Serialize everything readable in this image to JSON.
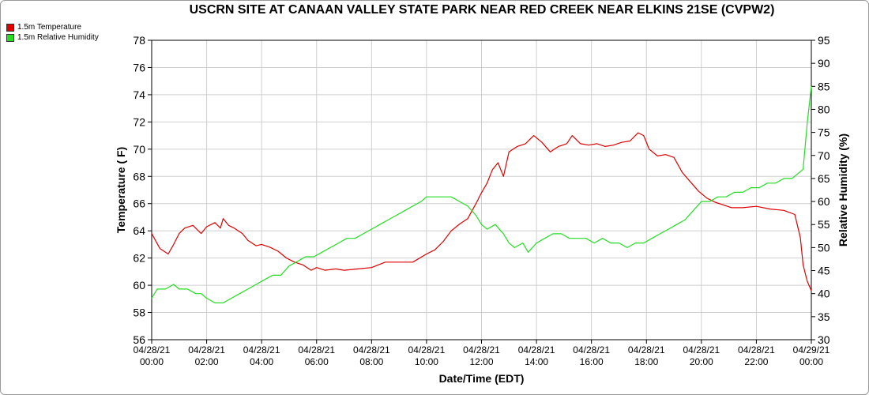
{
  "chart_data": {
    "type": "line",
    "title": "USCRN SITE AT CANAAN VALLEY STATE PARK NEAR RED CREEK NEAR ELKINS 21SE (CVPW2)",
    "xlabel": "Date/Time (EDT)",
    "ylabel": "Temperature ( F)",
    "y2label": "Relative Humidity (%)",
    "xlim": [
      0,
      24
    ],
    "ylim": [
      56,
      78
    ],
    "y2lim": [
      30,
      95
    ],
    "yticks": [
      "56",
      "58",
      "60",
      "62",
      "64",
      "66",
      "68",
      "70",
      "72",
      "74",
      "76",
      "78"
    ],
    "y2ticks": [
      "30",
      "35",
      "40",
      "45",
      "50",
      "55",
      "60",
      "65",
      "70",
      "75",
      "80",
      "85",
      "90",
      "95"
    ],
    "xticks": [
      {
        "date": "04/28/21",
        "time": "00:00"
      },
      {
        "date": "04/28/21",
        "time": "02:00"
      },
      {
        "date": "04/28/21",
        "time": "04:00"
      },
      {
        "date": "04/28/21",
        "time": "06:00"
      },
      {
        "date": "04/28/21",
        "time": "08:00"
      },
      {
        "date": "04/28/21",
        "time": "10:00"
      },
      {
        "date": "04/28/21",
        "time": "12:00"
      },
      {
        "date": "04/28/21",
        "time": "14:00"
      },
      {
        "date": "04/28/21",
        "time": "16:00"
      },
      {
        "date": "04/28/21",
        "time": "18:00"
      },
      {
        "date": "04/28/21",
        "time": "20:00"
      },
      {
        "date": "04/28/21",
        "time": "22:00"
      },
      {
        "date": "04/29/21",
        "time": "00:00"
      }
    ],
    "grid": true,
    "legend_position": "top-left",
    "series": [
      {
        "name": "1.5m Temperature",
        "color": "#e00000",
        "axis": "left",
        "x": [
          0,
          0.3,
          0.6,
          0.8,
          1.0,
          1.2,
          1.5,
          1.8,
          2.0,
          2.3,
          2.5,
          2.6,
          2.8,
          3.0,
          3.3,
          3.5,
          3.8,
          4.0,
          4.3,
          4.6,
          4.9,
          5.2,
          5.5,
          5.8,
          6.0,
          6.3,
          6.7,
          7.0,
          7.5,
          8.0,
          8.5,
          9.0,
          9.5,
          10.0,
          10.3,
          10.6,
          10.9,
          11.2,
          11.5,
          11.8,
          12.0,
          12.2,
          12.4,
          12.6,
          12.8,
          13.0,
          13.3,
          13.6,
          13.9,
          14.2,
          14.5,
          14.8,
          15.1,
          15.3,
          15.6,
          15.9,
          16.2,
          16.5,
          16.8,
          17.1,
          17.4,
          17.7,
          17.9,
          18.1,
          18.4,
          18.7,
          19.0,
          19.3,
          19.6,
          19.9,
          20.2,
          20.5,
          20.8,
          21.1,
          21.5,
          22.0,
          22.5,
          23.0,
          23.4,
          23.6,
          23.7,
          23.85,
          24.0
        ],
        "y": [
          63.8,
          62.7,
          62.3,
          63.0,
          63.8,
          64.2,
          64.4,
          63.8,
          64.3,
          64.6,
          64.2,
          64.9,
          64.4,
          64.2,
          63.8,
          63.3,
          62.9,
          63.0,
          62.8,
          62.5,
          62.0,
          61.7,
          61.5,
          61.1,
          61.3,
          61.1,
          61.2,
          61.1,
          61.2,
          61.3,
          61.7,
          61.7,
          61.7,
          62.3,
          62.6,
          63.2,
          64.0,
          64.5,
          64.9,
          66.0,
          66.8,
          67.5,
          68.5,
          69.0,
          68.0,
          69.8,
          70.2,
          70.4,
          71.0,
          70.5,
          69.8,
          70.2,
          70.4,
          71.0,
          70.4,
          70.3,
          70.4,
          70.2,
          70.3,
          70.5,
          70.6,
          71.2,
          71.0,
          70.0,
          69.5,
          69.6,
          69.4,
          68.3,
          67.6,
          66.9,
          66.4,
          66.1,
          65.9,
          65.7,
          65.7,
          65.8,
          65.6,
          65.5,
          65.2,
          63.5,
          61.5,
          60.3,
          59.6
        ]
      },
      {
        "name": "1.5m Relative Humidity",
        "color": "#22dd22",
        "axis": "right",
        "x": [
          0,
          0.2,
          0.5,
          0.8,
          1.0,
          1.3,
          1.6,
          1.8,
          2.0,
          2.3,
          2.6,
          2.9,
          3.2,
          3.5,
          3.8,
          4.1,
          4.4,
          4.7,
          5.0,
          5.3,
          5.6,
          5.9,
          6.2,
          6.5,
          6.8,
          7.1,
          7.4,
          7.7,
          8.0,
          8.3,
          8.6,
          8.9,
          9.2,
          9.5,
          9.8,
          10.0,
          10.3,
          10.6,
          10.9,
          11.2,
          11.5,
          11.8,
          12.0,
          12.2,
          12.5,
          12.8,
          13.0,
          13.2,
          13.5,
          13.7,
          14.0,
          14.3,
          14.6,
          14.9,
          15.2,
          15.5,
          15.8,
          16.1,
          16.4,
          16.7,
          17.0,
          17.3,
          17.6,
          17.9,
          18.2,
          18.5,
          18.8,
          19.1,
          19.4,
          19.7,
          20.0,
          20.3,
          20.6,
          20.9,
          21.2,
          21.5,
          21.8,
          22.1,
          22.4,
          22.7,
          23.0,
          23.3,
          23.5,
          23.7,
          23.85,
          24.0
        ],
        "y": [
          39,
          41,
          41,
          42,
          41,
          41,
          40,
          40,
          39,
          38,
          38,
          39,
          40,
          41,
          42,
          43,
          44,
          44,
          46,
          47,
          48,
          48,
          49,
          50,
          51,
          52,
          52,
          53,
          54,
          55,
          56,
          57,
          58,
          59,
          60,
          61,
          61,
          61,
          61,
          60,
          59,
          57,
          55,
          54,
          55,
          53,
          51,
          50,
          51,
          49,
          51,
          52,
          53,
          53,
          52,
          52,
          52,
          51,
          52,
          51,
          51,
          50,
          51,
          51,
          52,
          53,
          54,
          55,
          56,
          58,
          60,
          60,
          61,
          61,
          62,
          62,
          63,
          63,
          64,
          64,
          65,
          65,
          66,
          67,
          77,
          85
        ]
      }
    ]
  }
}
